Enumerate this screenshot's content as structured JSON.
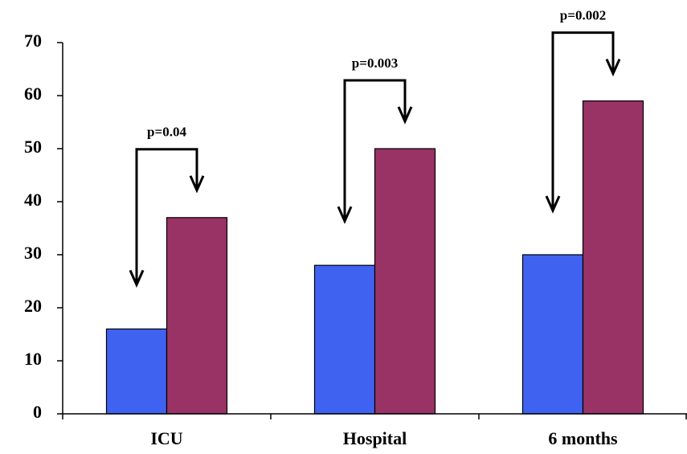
{
  "chart_data": {
    "type": "bar",
    "categories": [
      "ICU",
      "Hospital",
      "6 months"
    ],
    "series": [
      {
        "color": "#3f63f0",
        "values": [
          16,
          28,
          30
        ]
      },
      {
        "color": "#993366",
        "values": [
          37,
          50,
          59
        ]
      }
    ],
    "annotations": [
      "p=0.04",
      "p=0.003",
      "p=0.002"
    ],
    "ylim": [
      0,
      70
    ],
    "yticks": [
      0,
      10,
      20,
      30,
      40,
      50,
      60,
      70
    ],
    "grid": false
  }
}
